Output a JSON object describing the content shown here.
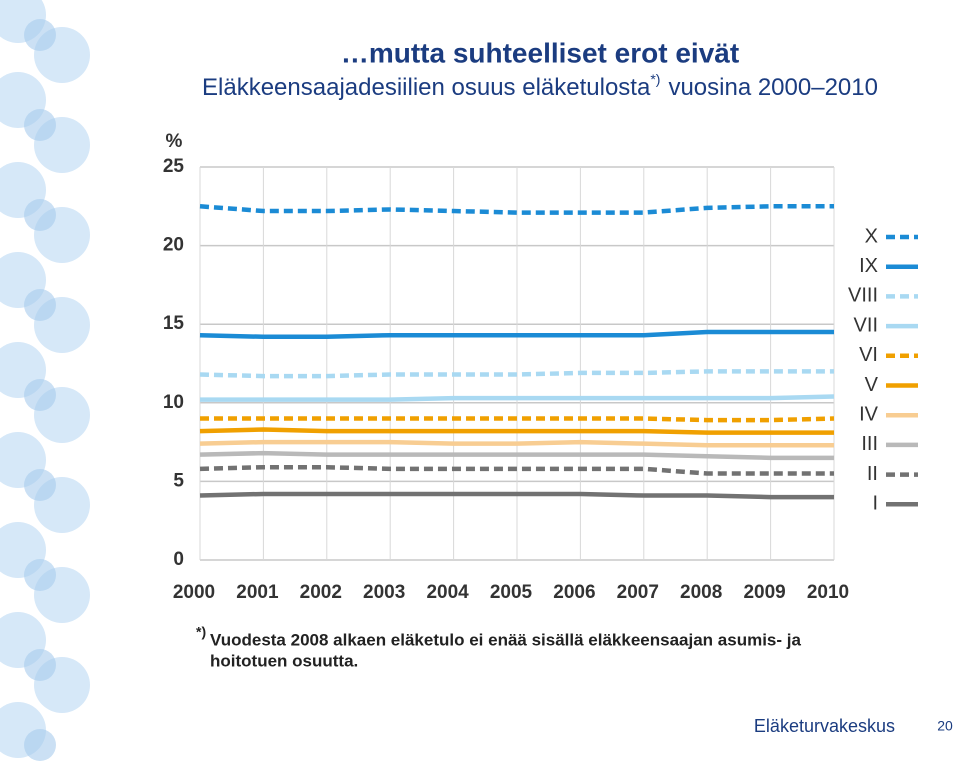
{
  "chart_data": {
    "type": "line",
    "title": "…mutta suhteelliset erot eivät",
    "subtitle": "Eläkkeensaajadesiilien osuus eläketulosta",
    "subtitle_mark": "*)",
    "subtitle_end": "vuosina 2000–2010",
    "y_label": "%",
    "x": [
      2000,
      2001,
      2002,
      2003,
      2004,
      2005,
      2006,
      2007,
      2008,
      2009,
      2010
    ],
    "xlim": [
      2000,
      2010
    ],
    "xticks": [
      2000,
      2001,
      2002,
      2003,
      2004,
      2005,
      2006,
      2007,
      2008,
      2009,
      2010
    ],
    "ylim": [
      0,
      25
    ],
    "yticks": [
      0,
      5,
      10,
      15,
      20,
      25
    ],
    "grid": true,
    "legend": "right",
    "series": [
      {
        "name": "X",
        "color": "#1b8bd5",
        "dash": true,
        "values": [
          22.5,
          22.2,
          22.2,
          22.3,
          22.2,
          22.1,
          22.1,
          22.1,
          22.4,
          22.5,
          22.5
        ]
      },
      {
        "name": "IX",
        "color": "#1b8bd5",
        "dash": false,
        "values": [
          14.3,
          14.2,
          14.2,
          14.3,
          14.3,
          14.3,
          14.3,
          14.3,
          14.5,
          14.5,
          14.5
        ]
      },
      {
        "name": "VIII",
        "color": "#a9d9f2",
        "dash": true,
        "values": [
          11.8,
          11.7,
          11.7,
          11.8,
          11.8,
          11.8,
          11.9,
          11.9,
          12.0,
          12.0,
          12.0
        ]
      },
      {
        "name": "VII",
        "color": "#a9d9f2",
        "dash": false,
        "values": [
          10.2,
          10.2,
          10.2,
          10.2,
          10.3,
          10.3,
          10.3,
          10.3,
          10.3,
          10.3,
          10.4
        ]
      },
      {
        "name": "VI",
        "color": "#f0a000",
        "dash": true,
        "values": [
          9.0,
          9.0,
          9.0,
          9.0,
          9.0,
          9.0,
          9.0,
          9.0,
          8.9,
          8.9,
          9.0
        ]
      },
      {
        "name": "V",
        "color": "#f0a000",
        "dash": false,
        "values": [
          8.2,
          8.3,
          8.2,
          8.2,
          8.2,
          8.2,
          8.2,
          8.2,
          8.1,
          8.1,
          8.1
        ]
      },
      {
        "name": "IV",
        "color": "#f8cd92",
        "dash": false,
        "values": [
          7.4,
          7.5,
          7.5,
          7.5,
          7.4,
          7.4,
          7.5,
          7.4,
          7.3,
          7.3,
          7.3
        ]
      },
      {
        "name": "III",
        "color": "#b9b9b9",
        "dash": false,
        "values": [
          6.7,
          6.8,
          6.7,
          6.7,
          6.7,
          6.7,
          6.7,
          6.7,
          6.6,
          6.5,
          6.5
        ]
      },
      {
        "name": "II",
        "color": "#727272",
        "dash": true,
        "values": [
          5.8,
          5.9,
          5.9,
          5.8,
          5.8,
          5.8,
          5.8,
          5.8,
          5.5,
          5.5,
          5.5
        ]
      },
      {
        "name": "I",
        "color": "#727272",
        "dash": false,
        "values": [
          4.1,
          4.2,
          4.2,
          4.2,
          4.2,
          4.2,
          4.2,
          4.1,
          4.1,
          4.0,
          4.0
        ]
      }
    ],
    "footnote_mark": "*)",
    "footnote_lines": [
      "Vuodesta 2008 alkaen eläketulo ei enää sisällä eläkkeensaajan asumis- ja",
      "hoitotuen osuutta."
    ],
    "organization": "Eläketurvakeskus",
    "page_number": "20"
  }
}
